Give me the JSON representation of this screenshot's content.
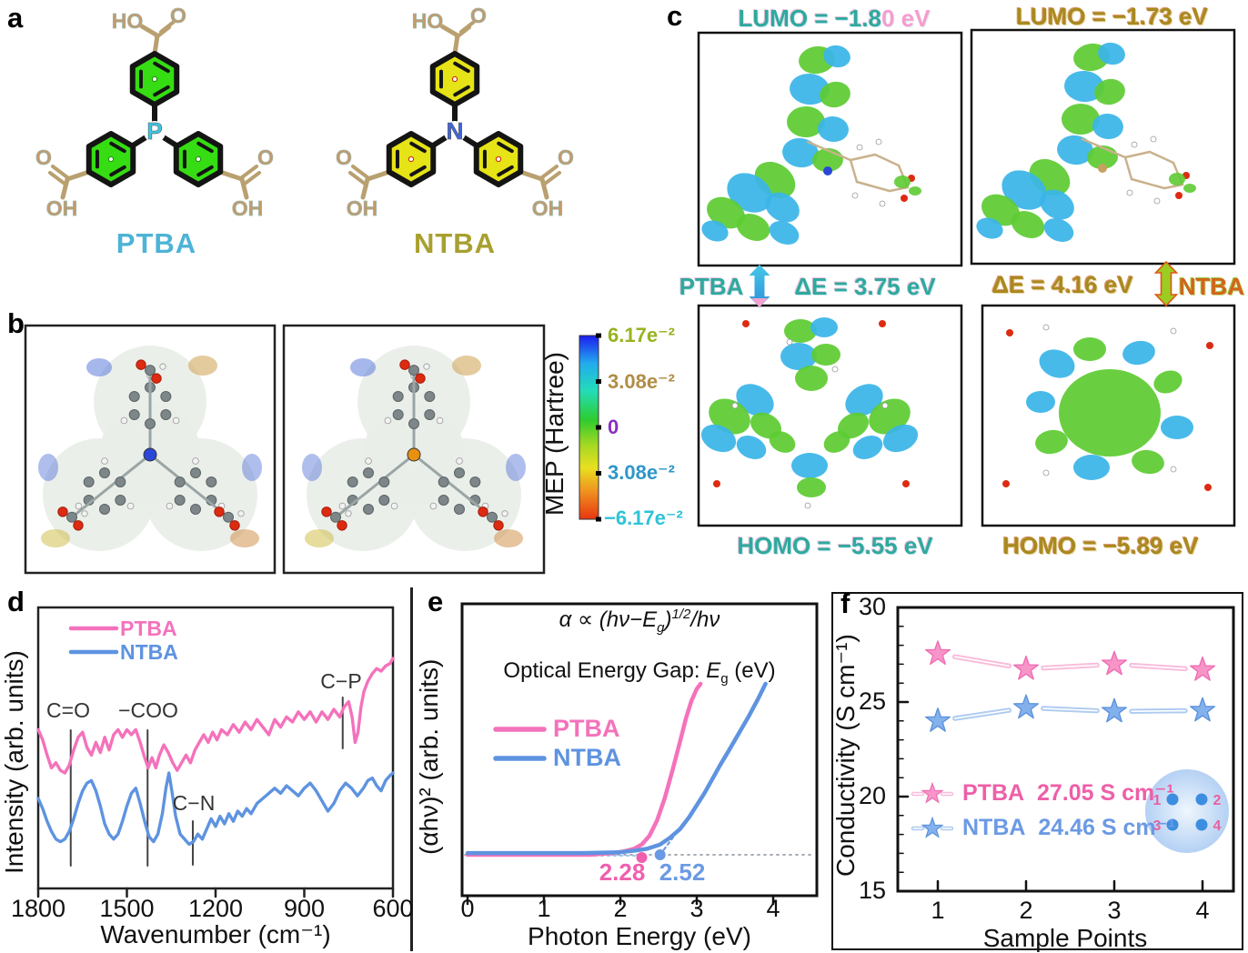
{
  "panel_a": {
    "label": "a",
    "acid_labels": {
      "ho": "HO",
      "o": "O",
      "oh": "OH"
    },
    "molecules": [
      {
        "name": "PTBA",
        "center_atom": "P",
        "center_color": "#3bc8e8",
        "ring_fill": "#35dd12",
        "ring_inner": "#1a8a10",
        "name_color": "#4db3d6"
      },
      {
        "name": "NTBA",
        "center_atom": "N",
        "center_color": "#4166e0",
        "ring_fill": "#e6e316",
        "ring_inner": "#cc2200",
        "name_color": "#a8a030"
      }
    ]
  },
  "panel_b": {
    "label": "b",
    "colorbar_title": "MEP (Hartree)",
    "colorbar_ticks": [
      {
        "text": "6.17e⁻²",
        "color": "#97b31f"
      },
      {
        "text": "3.08e⁻²",
        "color": "#b08d45"
      },
      {
        "text": "0",
        "color": "#8a2fc0"
      },
      {
        "text": "3.08e⁻²",
        "color": "#2e97c9"
      },
      {
        "text": "−6.17e⁻²",
        "color": "#2fc3d8"
      }
    ]
  },
  "panel_c": {
    "label": "c",
    "left": {
      "name": "PTBA",
      "lumo_main": "LUMO = −1.8",
      "lumo_tail": "0 eV",
      "gap": "ΔE = 3.75 eV",
      "homo": "HOMO = −5.55 eV"
    },
    "right": {
      "name": "NTBA",
      "lumo": "LUMO = −1.73 eV",
      "gap": "ΔE = 4.16 eV",
      "homo": "HOMO = −5.89 eV"
    }
  },
  "chart_data": [
    {
      "id": "d",
      "panel_label": "d",
      "type": "line",
      "xlabel": "Wavenumber (cm⁻¹)",
      "ylabel": "Intensity (arb. units)",
      "xlim": [
        1800,
        600
      ],
      "x_reversed": true,
      "xticks": [
        1800,
        1500,
        1200,
        900,
        600
      ],
      "legend": [
        {
          "label": "PTBA",
          "color": "#f472bb"
        },
        {
          "label": "NTBA",
          "color": "#5e93e0"
        }
      ],
      "annotations": [
        {
          "label": "C=O",
          "x": 1690
        },
        {
          "label": "−COO",
          "x": 1430
        },
        {
          "label": "C−N",
          "x": 1277
        },
        {
          "label": "C−P",
          "x": 770
        }
      ],
      "series": [
        {
          "name": "PTBA",
          "color": "#f472bb",
          "points": [
            [
              1800,
              0.57
            ],
            [
              1785,
              0.53
            ],
            [
              1770,
              0.47
            ],
            [
              1755,
              0.42
            ],
            [
              1740,
              0.44
            ],
            [
              1725,
              0.41
            ],
            [
              1710,
              0.4
            ],
            [
              1695,
              0.43
            ],
            [
              1680,
              0.49
            ],
            [
              1665,
              0.54
            ],
            [
              1650,
              0.56
            ],
            [
              1635,
              0.5
            ],
            [
              1620,
              0.47
            ],
            [
              1605,
              0.52
            ],
            [
              1590,
              0.48
            ],
            [
              1575,
              0.54
            ],
            [
              1560,
              0.49
            ],
            [
              1545,
              0.55
            ],
            [
              1530,
              0.57
            ],
            [
              1515,
              0.54
            ],
            [
              1500,
              0.57
            ],
            [
              1485,
              0.55
            ],
            [
              1470,
              0.57
            ],
            [
              1455,
              0.52
            ],
            [
              1440,
              0.46
            ],
            [
              1428,
              0.42
            ],
            [
              1415,
              0.46
            ],
            [
              1402,
              0.42
            ],
            [
              1390,
              0.47
            ],
            [
              1375,
              0.51
            ],
            [
              1360,
              0.48
            ],
            [
              1345,
              0.44
            ],
            [
              1330,
              0.41
            ],
            [
              1315,
              0.44
            ],
            [
              1300,
              0.47
            ],
            [
              1285,
              0.44
            ],
            [
              1270,
              0.49
            ],
            [
              1255,
              0.52
            ],
            [
              1240,
              0.55
            ],
            [
              1225,
              0.52
            ],
            [
              1210,
              0.56
            ],
            [
              1195,
              0.53
            ],
            [
              1180,
              0.57
            ],
            [
              1160,
              0.55
            ],
            [
              1140,
              0.59
            ],
            [
              1120,
              0.56
            ],
            [
              1100,
              0.6
            ],
            [
              1080,
              0.57
            ],
            [
              1060,
              0.61
            ],
            [
              1040,
              0.58
            ],
            [
              1020,
              0.55
            ],
            [
              1000,
              0.61
            ],
            [
              980,
              0.58
            ],
            [
              960,
              0.62
            ],
            [
              940,
              0.6
            ],
            [
              920,
              0.64
            ],
            [
              900,
              0.61
            ],
            [
              880,
              0.64
            ],
            [
              860,
              0.6
            ],
            [
              840,
              0.64
            ],
            [
              820,
              0.61
            ],
            [
              800,
              0.65
            ],
            [
              780,
              0.62
            ],
            [
              765,
              0.66
            ],
            [
              750,
              0.68
            ],
            [
              738,
              0.62
            ],
            [
              728,
              0.52
            ],
            [
              718,
              0.56
            ],
            [
              708,
              0.66
            ],
            [
              698,
              0.72
            ],
            [
              685,
              0.76
            ],
            [
              670,
              0.79
            ],
            [
              655,
              0.81
            ],
            [
              640,
              0.8
            ],
            [
              625,
              0.82
            ],
            [
              610,
              0.83
            ],
            [
              600,
              0.85
            ]
          ]
        },
        {
          "name": "NTBA",
          "color": "#5e93e0",
          "points": [
            [
              1800,
              0.3
            ],
            [
              1785,
              0.26
            ],
            [
              1770,
              0.21
            ],
            [
              1755,
              0.17
            ],
            [
              1740,
              0.14
            ],
            [
              1725,
              0.13
            ],
            [
              1710,
              0.14
            ],
            [
              1695,
              0.17
            ],
            [
              1680,
              0.22
            ],
            [
              1665,
              0.28
            ],
            [
              1650,
              0.33
            ],
            [
              1635,
              0.36
            ],
            [
              1620,
              0.37
            ],
            [
              1605,
              0.33
            ],
            [
              1590,
              0.27
            ],
            [
              1575,
              0.2
            ],
            [
              1560,
              0.16
            ],
            [
              1545,
              0.14
            ],
            [
              1530,
              0.16
            ],
            [
              1515,
              0.21
            ],
            [
              1500,
              0.27
            ],
            [
              1485,
              0.32
            ],
            [
              1470,
              0.34
            ],
            [
              1455,
              0.28
            ],
            [
              1440,
              0.21
            ],
            [
              1425,
              0.15
            ],
            [
              1410,
              0.13
            ],
            [
              1395,
              0.16
            ],
            [
              1380,
              0.24
            ],
            [
              1368,
              0.34
            ],
            [
              1358,
              0.4
            ],
            [
              1348,
              0.33
            ],
            [
              1335,
              0.23
            ],
            [
              1320,
              0.16
            ],
            [
              1305,
              0.14
            ],
            [
              1290,
              0.12
            ],
            [
              1275,
              0.13
            ],
            [
              1260,
              0.16
            ],
            [
              1245,
              0.14
            ],
            [
              1230,
              0.18
            ],
            [
              1215,
              0.22
            ],
            [
              1200,
              0.19
            ],
            [
              1185,
              0.23
            ],
            [
              1170,
              0.2
            ],
            [
              1155,
              0.24
            ],
            [
              1140,
              0.21
            ],
            [
              1125,
              0.25
            ],
            [
              1110,
              0.23
            ],
            [
              1095,
              0.26
            ],
            [
              1080,
              0.24
            ],
            [
              1060,
              0.28
            ],
            [
              1040,
              0.3
            ],
            [
              1020,
              0.32
            ],
            [
              1000,
              0.34
            ],
            [
              980,
              0.32
            ],
            [
              960,
              0.35
            ],
            [
              940,
              0.33
            ],
            [
              920,
              0.31
            ],
            [
              900,
              0.34
            ],
            [
              880,
              0.36
            ],
            [
              860,
              0.33
            ],
            [
              840,
              0.29
            ],
            [
              820,
              0.25
            ],
            [
              800,
              0.28
            ],
            [
              780,
              0.33
            ],
            [
              760,
              0.36
            ],
            [
              740,
              0.34
            ],
            [
              720,
              0.31
            ],
            [
              700,
              0.34
            ],
            [
              685,
              0.37
            ],
            [
              670,
              0.38
            ],
            [
              655,
              0.35
            ],
            [
              640,
              0.33
            ],
            [
              625,
              0.37
            ],
            [
              610,
              0.39
            ],
            [
              600,
              0.4
            ]
          ]
        }
      ]
    },
    {
      "id": "e",
      "panel_label": "e",
      "type": "line",
      "equation": {
        "pre": "α ∝ (hν−E",
        "sub": "g",
        "mid": ")",
        "sup": "1/2",
        "post": "/hν"
      },
      "subtitle": {
        "pre": "Optical Energy Gap: ",
        "evar": "E",
        "sub": "g",
        "post": " (eV)"
      },
      "xlabel": "Photon Energy (eV)",
      "ylabel": "(αhν)² (arb. units)",
      "xlim": [
        0,
        4.5
      ],
      "xticks": [
        0,
        1,
        2,
        3,
        4
      ],
      "legend": [
        {
          "label": "PTBA",
          "color": "#f472bb"
        },
        {
          "label": "NTBA",
          "color": "#5e93e0"
        }
      ],
      "onsets": [
        {
          "label": "2.28",
          "x": 2.28,
          "color": "#f05fae"
        },
        {
          "label": "2.52",
          "x": 2.52,
          "color": "#6b9ae4"
        }
      ],
      "series": [
        {
          "name": "PTBA",
          "color": "#f472bb",
          "points": [
            [
              0,
              0
            ],
            [
              0.6,
              0
            ],
            [
              1.2,
              0
            ],
            [
              1.6,
              0
            ],
            [
              1.9,
              0.01
            ],
            [
              2.05,
              0.02
            ],
            [
              2.18,
              0.035
            ],
            [
              2.28,
              0.06
            ],
            [
              2.38,
              0.11
            ],
            [
              2.48,
              0.2
            ],
            [
              2.58,
              0.33
            ],
            [
              2.68,
              0.49
            ],
            [
              2.78,
              0.66
            ],
            [
              2.86,
              0.8
            ],
            [
              2.93,
              0.9
            ],
            [
              3.0,
              0.97
            ],
            [
              3.05,
              1.0
            ]
          ]
        },
        {
          "name": "NTBA",
          "color": "#5e93e0",
          "points": [
            [
              0,
              0.01
            ],
            [
              0.8,
              0.01
            ],
            [
              1.5,
              0.01
            ],
            [
              2.0,
              0.015
            ],
            [
              2.2,
              0.025
            ],
            [
              2.35,
              0.035
            ],
            [
              2.52,
              0.06
            ],
            [
              2.65,
              0.1
            ],
            [
              2.78,
              0.15
            ],
            [
              2.9,
              0.22
            ],
            [
              3.0,
              0.29
            ],
            [
              3.1,
              0.36
            ],
            [
              3.2,
              0.44
            ],
            [
              3.3,
              0.52
            ],
            [
              3.42,
              0.61
            ],
            [
              3.55,
              0.71
            ],
            [
              3.68,
              0.81
            ],
            [
              3.8,
              0.91
            ],
            [
              3.9,
              1.0
            ]
          ]
        }
      ]
    },
    {
      "id": "f",
      "panel_label": "f",
      "type": "scatter-line",
      "marker": "star",
      "xlabel": "Sample Points",
      "ylabel": "Conductivity (S cm⁻¹)",
      "xlim": [
        0.5,
        4.4
      ],
      "ylim": [
        15,
        30
      ],
      "xticks": [
        1,
        2,
        3,
        4
      ],
      "yticks": [
        15,
        20,
        25,
        30
      ],
      "series": [
        {
          "name": "PTBA",
          "x": [
            1,
            2,
            3,
            4
          ],
          "values": [
            27.55,
            26.75,
            27.0,
            26.7
          ],
          "color": "#f795c9",
          "edge": "#ef6db2",
          "line_color": "#f9bcdc"
        },
        {
          "name": "NTBA",
          "x": [
            1,
            2,
            3,
            4
          ],
          "values": [
            24.0,
            24.7,
            24.5,
            24.55
          ],
          "color": "#82b1ec",
          "edge": "#5d92dd",
          "line_color": "#aecbf1"
        }
      ],
      "legend": [
        {
          "label": "PTBA",
          "value": "27.05 S cm⁻¹",
          "color": "#ee5fa8"
        },
        {
          "label": "NTBA",
          "value": "24.46 S cm⁻¹",
          "color": "#6b9ae4"
        }
      ],
      "inset_labels": [
        "1",
        "2",
        "3",
        "4"
      ]
    }
  ]
}
